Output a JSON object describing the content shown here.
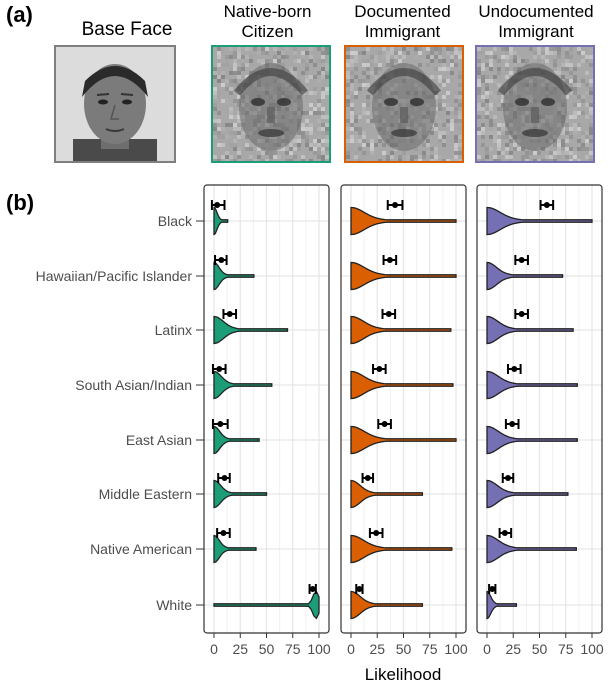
{
  "panel_labels": {
    "a": "(a)",
    "b": "(b)"
  },
  "faces": [
    {
      "title_lines": [
        "Base Face"
      ],
      "border": "#7f7f7f",
      "style": "photo"
    },
    {
      "title_lines": [
        "Native-born",
        "Citizen"
      ],
      "border": "#1b9e77",
      "style": "noisy"
    },
    {
      "title_lines": [
        "Documented",
        "Immigrant"
      ],
      "border": "#d95f02",
      "style": "noisy"
    },
    {
      "title_lines": [
        "Undocumented",
        "Immigrant"
      ],
      "border": "#7570b3",
      "style": "noisy"
    }
  ],
  "chart_data": {
    "type": "violin",
    "xlabel": "Likelihood",
    "xlim": [
      0,
      100
    ],
    "xticks": [
      "0",
      "25",
      "50",
      "75",
      "100"
    ],
    "grid": true,
    "categories": [
      "Black",
      "Hawaiian/Pacific Islander",
      "Latinx",
      "South Asian/Indian",
      "East Asian",
      "Middle Eastern",
      "Native American",
      "White"
    ],
    "series": [
      {
        "name": "Native-born Citizen",
        "color": "#1b9e77",
        "means": [
          3,
          7,
          15,
          5,
          6,
          10,
          9,
          94
        ],
        "ci": [
          [
            -2,
            10
          ],
          [
            1,
            12
          ],
          [
            9,
            21
          ],
          [
            -1,
            11
          ],
          [
            -1,
            13
          ],
          [
            4,
            15
          ],
          [
            3,
            15
          ],
          [
            91,
            97
          ]
        ],
        "max": [
          13,
          38,
          70,
          55,
          43,
          50,
          40,
          100
        ]
      },
      {
        "name": "Documented Immigrant",
        "color": "#d95f02",
        "means": [
          42,
          37,
          36,
          27,
          32,
          16,
          24,
          8
        ],
        "ci": [
          [
            35,
            49
          ],
          [
            31,
            43
          ],
          [
            30,
            42
          ],
          [
            21,
            33
          ],
          [
            26,
            38
          ],
          [
            11,
            21
          ],
          [
            18,
            30
          ],
          [
            5,
            11
          ]
        ],
        "max": [
          100,
          100,
          95,
          97,
          100,
          68,
          96,
          68
        ]
      },
      {
        "name": "Undocumented Immigrant",
        "color": "#7570b3",
        "means": [
          57,
          33,
          33,
          26,
          24,
          20,
          17,
          5
        ],
        "ci": [
          [
            51,
            63
          ],
          [
            27,
            39
          ],
          [
            27,
            39
          ],
          [
            20,
            32
          ],
          [
            18,
            30
          ],
          [
            15,
            25
          ],
          [
            12,
            23
          ],
          [
            2,
            8
          ]
        ],
        "max": [
          100,
          72,
          82,
          86,
          86,
          77,
          85,
          28
        ]
      }
    ]
  }
}
